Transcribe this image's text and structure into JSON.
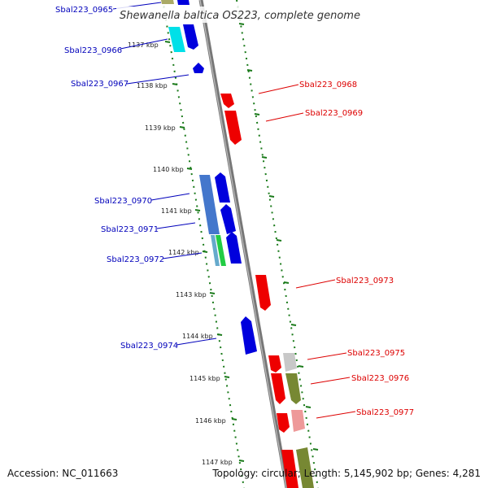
{
  "title": "Shewanella baltica OS223, complete genome",
  "footer": {
    "accession": "Accession: NC_011663",
    "summary": "Topology: circular; Length: 5,145,902 bp; Genes: 4,281"
  },
  "colors": {
    "forward_label": "#0000bb",
    "reverse_label": "#dd0000",
    "backbone": "#888888",
    "tick": "#1a7a1a"
  },
  "ticks": [
    {
      "label": "1137 kbp",
      "kbp": 1137
    },
    {
      "label": "1138 kbp",
      "kbp": 1138
    },
    {
      "label": "1139 kbp",
      "kbp": 1139
    },
    {
      "label": "1140 kbp",
      "kbp": 1140
    },
    {
      "label": "1141 kbp",
      "kbp": 1141
    },
    {
      "label": "1142 kbp",
      "kbp": 1142
    },
    {
      "label": "1143 kbp",
      "kbp": 1143
    },
    {
      "label": "1144 kbp",
      "kbp": 1144
    },
    {
      "label": "1145 kbp",
      "kbp": 1145
    },
    {
      "label": "1146 kbp",
      "kbp": 1146
    },
    {
      "label": "1147 kbp",
      "kbp": 1147
    }
  ],
  "forward_labels": [
    "Sbal223_0965",
    "Sbal223_0966",
    "Sbal223_0967",
    "Sbal223_0970",
    "Sbal223_0971",
    "Sbal223_0972",
    "Sbal223_0974"
  ],
  "reverse_labels": [
    "Sbal223_0968",
    "Sbal223_0969",
    "Sbal223_0973",
    "Sbal223_0975",
    "Sbal223_0976",
    "Sbal223_0977"
  ]
}
